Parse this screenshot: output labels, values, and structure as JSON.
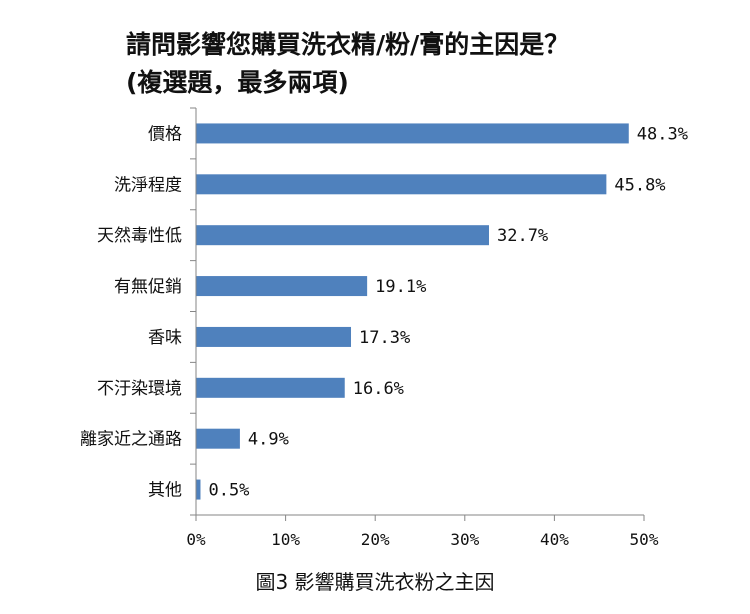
{
  "title_line1": "請問影響您購買洗衣精/粉/膏的主因是？",
  "title_line2": "(複選題，最多兩項)",
  "caption": "圖3 影響購買洗衣粉之主因",
  "bar_color": "#4F81BD",
  "chart_data": {
    "type": "bar",
    "orientation": "horizontal",
    "title": "請問影響您購買洗衣精/粉/膏的主因是？(複選題，最多兩項)",
    "categories": [
      "價格",
      "洗淨程度",
      "天然毒性低",
      "有無促銷",
      "香味",
      "不汙染環境",
      "離家近之通路",
      "其他"
    ],
    "values": [
      48.3,
      45.8,
      32.7,
      19.1,
      17.3,
      16.6,
      4.9,
      0.5
    ],
    "value_labels": [
      "48.3%",
      "45.8%",
      "32.7%",
      "19.1%",
      "17.3%",
      "16.6%",
      "4.9%",
      "0.5%"
    ],
    "xlim": [
      0,
      50
    ],
    "xticks": [
      "0%",
      "10%",
      "20%",
      "30%",
      "40%",
      "50%"
    ],
    "xlabel": "",
    "ylabel": "",
    "grid": false,
    "legend": false
  }
}
